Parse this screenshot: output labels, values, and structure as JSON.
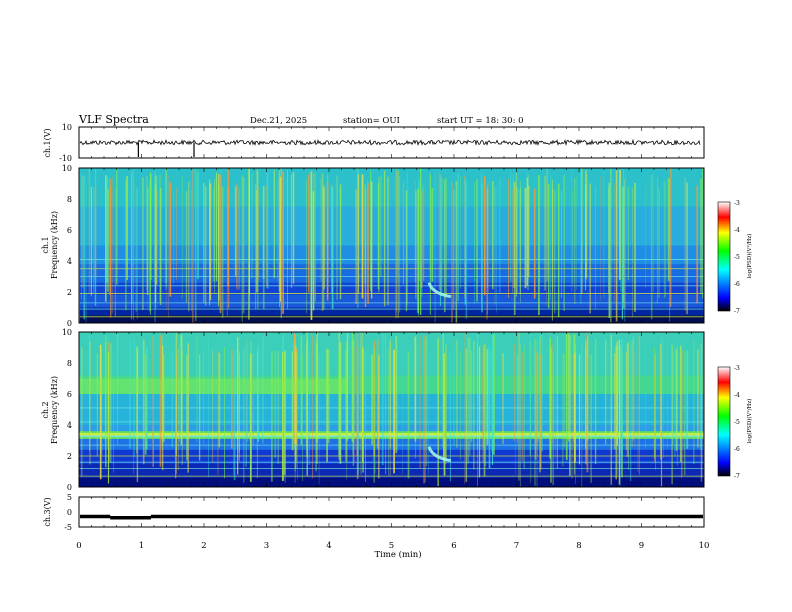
{
  "header": {
    "title": "VLF Spectra",
    "date": "Dec.21, 2025",
    "station": "station= OUI",
    "start_ut": "start  UT =   18: 30: 0"
  },
  "chart_data": [
    {
      "type": "line",
      "name": "ch1-waveform",
      "ylabel": "ch.1(V)",
      "ylim": [
        -10,
        10
      ],
      "yticks": [
        "10",
        "-10"
      ],
      "baseline": 0,
      "spikes_min": [
        0.95,
        1.84
      ]
    },
    {
      "type": "heatmap",
      "name": "ch1-spectrogram",
      "ylabel_top": "ch.1",
      "ylabel": "Frequency  (kHz)",
      "ylim": [
        0,
        10
      ],
      "yticks": [
        "0",
        "2",
        "4",
        "6",
        "8",
        "10"
      ],
      "feature_whistler_min": 5.6
    },
    {
      "type": "heatmap",
      "name": "ch2-spectrogram",
      "ylabel_top": "ch.2",
      "ylabel": "Frequency  (kHz)",
      "ylim": [
        0,
        10
      ],
      "yticks": [
        "0",
        "2",
        "4",
        "6",
        "8",
        "10"
      ],
      "feature_band_khz": 3.3,
      "feature_whistler_min": 5.6
    },
    {
      "type": "line",
      "name": "ch3-level",
      "ylabel": "ch.3(V)",
      "ylim": [
        -5,
        5
      ],
      "yticks": [
        "5",
        "0",
        "-5"
      ],
      "level": -1.5
    }
  ],
  "x_axis": {
    "label": "Time  (min)",
    "range": [
      0,
      10
    ],
    "ticks": [
      "0",
      "1",
      "2",
      "3",
      "4",
      "5",
      "6",
      "7",
      "8",
      "9",
      "10"
    ]
  },
  "colorbar": {
    "label": "log(PSD)(V²/Hz)",
    "ticks": [
      "-3",
      "-4",
      "-5",
      "-6",
      "-7"
    ],
    "range": [
      -7,
      -3
    ],
    "colors": [
      "#000000",
      "#0000ff",
      "#00ffff",
      "#00ff00",
      "#ffff00",
      "#ff0000",
      "#ffffff"
    ]
  }
}
